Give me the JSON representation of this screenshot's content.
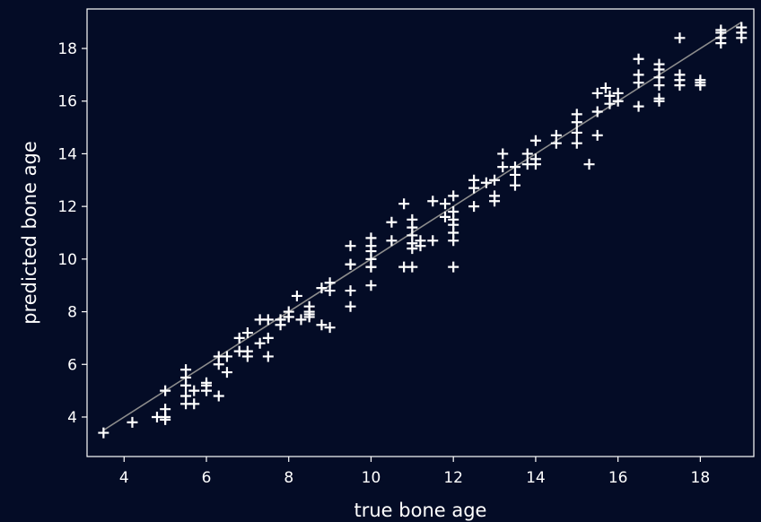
{
  "chart_data": {
    "type": "scatter",
    "xlabel": "true bone age",
    "ylabel": "predicted bone age",
    "xlim": [
      3.1,
      19.3
    ],
    "ylim": [
      2.5,
      19.5
    ],
    "xticks": [
      4,
      6,
      8,
      10,
      12,
      14,
      16,
      18
    ],
    "yticks": [
      4,
      6,
      8,
      10,
      12,
      14,
      16,
      18
    ],
    "grid": false,
    "legend": "none",
    "marker": "plus",
    "colors": {
      "background": "#040c26",
      "axes": "#ffffff",
      "marker": "#ffffff",
      "reference_line": "#8c8c8c"
    },
    "reference_line": {
      "x": [
        3.5,
        19
      ],
      "y": [
        3.5,
        19
      ]
    },
    "series": [
      {
        "x": [
          3.5,
          4.2,
          4.8,
          5,
          5,
          5,
          5,
          5.5,
          5.5,
          5.5,
          5.5,
          5.5,
          5.7,
          5.7,
          6,
          6,
          6,
          6.3,
          6.3,
          6.3,
          6.5,
          6.5,
          6.8,
          6.8,
          7,
          7,
          7,
          7.3,
          7.3,
          7.5,
          7.5,
          7.5,
          7.8,
          7.8,
          8,
          8,
          8,
          8.2,
          8.5,
          8.5,
          8.5,
          8.5,
          8.3,
          8.8,
          8.8,
          9,
          9,
          9,
          9.5,
          9.5,
          9.5,
          9.5,
          9.5,
          10,
          10,
          10,
          10,
          10,
          10,
          10,
          10.5,
          10.5,
          10.8,
          10.8,
          11,
          11,
          11,
          11,
          11,
          11,
          11.2,
          11.2,
          11.5,
          11.5,
          11.8,
          11.8,
          12,
          12,
          12,
          12,
          12,
          12,
          12,
          12.5,
          12.5,
          12.5,
          12.8,
          13,
          13,
          13,
          13.2,
          13.2,
          13.5,
          13.5,
          13.5,
          13.8,
          13.8,
          14,
          14,
          14,
          14.5,
          14.5,
          15,
          15,
          15,
          15,
          15.3,
          15.5,
          15.5,
          15.5,
          15.7,
          15.8,
          15.8,
          16,
          16,
          16.5,
          16.5,
          16.5,
          16.5,
          17,
          17,
          17,
          17,
          17,
          17,
          17.5,
          17.5,
          17.5,
          17.5,
          18,
          18,
          18,
          18.5,
          18.5,
          18.5,
          18.5,
          19,
          19,
          19
        ],
        "y": [
          3.4,
          3.8,
          4,
          4,
          4.3,
          3.9,
          5,
          4.8,
          5.2,
          5.5,
          5.8,
          4.5,
          5,
          4.5,
          5.3,
          5,
          5.2,
          4.8,
          6,
          6.3,
          6.3,
          5.7,
          6.5,
          7,
          7.2,
          6.5,
          6.3,
          7.7,
          6.8,
          7.7,
          7,
          6.3,
          7.5,
          7.7,
          8,
          7.8,
          7.8,
          8.6,
          7.8,
          8,
          8.2,
          7.9,
          7.7,
          8.9,
          7.5,
          7.4,
          8.8,
          9.1,
          8.2,
          8.8,
          9.8,
          10.5,
          9.8,
          9,
          9.7,
          10,
          10.3,
          10.8,
          10.5,
          9.7,
          11.4,
          10.7,
          12.1,
          9.7,
          9.7,
          10.4,
          10.6,
          10.9,
          11.2,
          11.5,
          10.5,
          10.7,
          10.7,
          12.2,
          11.6,
          12.1,
          11.5,
          12.4,
          11.8,
          11.3,
          11,
          10.7,
          9.7,
          12.7,
          13,
          12,
          12.9,
          12.4,
          13,
          12.2,
          13.5,
          14,
          13.2,
          12.8,
          13.5,
          14,
          13.6,
          14.5,
          13.8,
          13.6,
          14.7,
          14.4,
          15.5,
          15.2,
          14.8,
          14.4,
          13.6,
          15.6,
          16.3,
          14.7,
          16.5,
          16.2,
          15.9,
          16.3,
          16,
          17.6,
          17,
          16.7,
          15.8,
          17.4,
          17.2,
          16.9,
          16.6,
          16.1,
          16,
          18.4,
          17,
          16.8,
          16.6,
          16.8,
          16.6,
          16.7,
          18.7,
          18.6,
          18.4,
          18.2,
          18.8,
          18.6,
          18.4
        ]
      }
    ]
  }
}
